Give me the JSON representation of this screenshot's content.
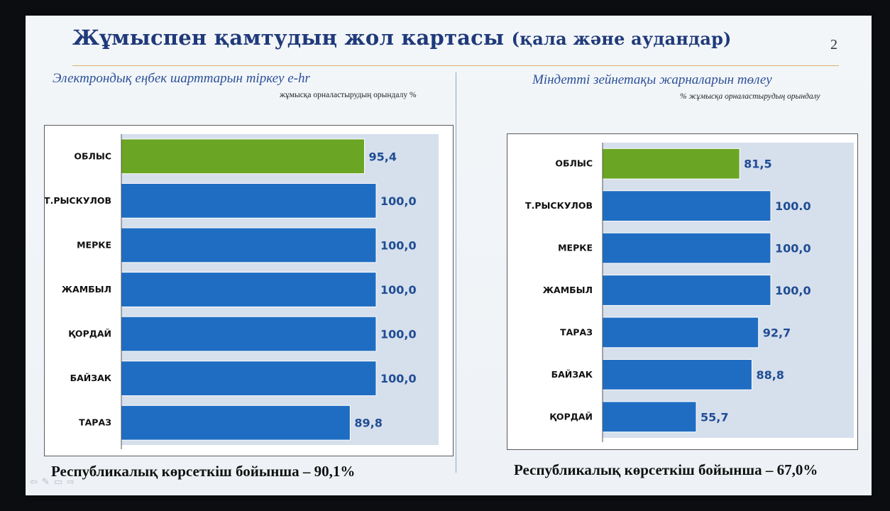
{
  "slide": {
    "title_main": "Жұмыспен қамтудың жол картасы",
    "title_paren": "(қала және аудандар)",
    "page_number": "2"
  },
  "colors": {
    "highlight_bar": "#6aa524",
    "bar": "#1f6dc2",
    "plot_bg": "#d6dfec",
    "value_text": "#1f4d94",
    "title_text": "#1f3a7a"
  },
  "left": {
    "subtitle": "Электрондық еңбек шарттарын тіркеу e-hr",
    "unit_note": "жұмысқа орналастырудың орындалу %",
    "footer": "Республикалық көрсеткіш бойынша – 90,1%"
  },
  "right": {
    "subtitle": "Міндетті зейнетақы жарналарын төлеу",
    "unit_note": "% жұмысқа орналастырудың орындалу",
    "footer": "Республикалық көрсеткіш бойынша – 67,0%"
  },
  "nav": {
    "icons": [
      "arrow-left-icon",
      "pen-icon",
      "menu-icon",
      "arrow-right-icon"
    ]
  },
  "chart_data": [
    {
      "type": "bar",
      "orientation": "horizontal",
      "categories": [
        "ОБЛЫС",
        "Т.РЫСКУЛОВ",
        "МЕРКЕ",
        "ЖАМБЫЛ",
        "ҚОРДАЙ",
        "БАЙЗАК",
        "ТАРАЗ"
      ],
      "values": [
        95.4,
        100.0,
        100.0,
        100.0,
        100.0,
        100.0,
        89.8
      ],
      "value_labels": [
        "95,4",
        "100,0",
        "100,0",
        "100,0",
        "100,0",
        "100,0",
        "89,8"
      ],
      "highlight_index": 0,
      "xlim": [
        0,
        100
      ],
      "grid": false,
      "legend": "none"
    },
    {
      "type": "bar",
      "orientation": "horizontal",
      "categories": [
        "ОБЛЫС",
        "Т.РЫСКУЛОВ",
        "МЕРКЕ",
        "ЖАМБЫЛ",
        "ТАРАЗ",
        "БАЙЗАК",
        "ҚОРДАЙ"
      ],
      "values": [
        81.5,
        100.0,
        100.0,
        100.0,
        92.7,
        88.8,
        55.7
      ],
      "value_labels": [
        "81,5",
        "100.0",
        "100,0",
        "100,0",
        "92,7",
        "88,8",
        "55,7"
      ],
      "highlight_index": 0,
      "xlim": [
        0,
        100
      ],
      "grid": false,
      "legend": "none"
    }
  ]
}
